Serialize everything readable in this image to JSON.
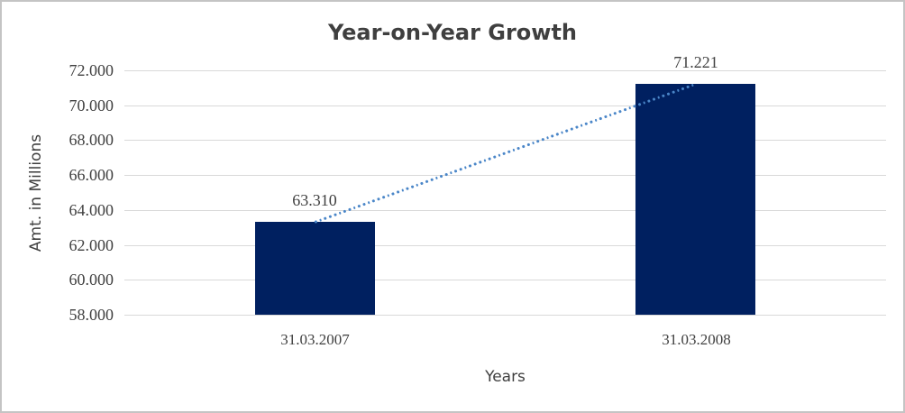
{
  "chart_data": {
    "type": "bar",
    "title": "Year-on-Year Growth",
    "xlabel": "Years",
    "ylabel": "Amt. in Millions",
    "categories": [
      "31.03.2007",
      "31.03.2008"
    ],
    "values": [
      63310,
      71221
    ],
    "data_labels": [
      "63.310",
      "71.221"
    ],
    "ylim": [
      58000,
      72000
    ],
    "y_tick_step": 2000,
    "y_tick_labels": [
      "58.000",
      "60.000",
      "62.000",
      "64.000",
      "66.000",
      "68.000",
      "70.000",
      "72.000"
    ],
    "grid": true,
    "legend": "none",
    "trendline": {
      "type": "linear",
      "style": "dotted",
      "connects": [
        "31.03.2007",
        "31.03.2008"
      ]
    },
    "colors": {
      "bar": "#002060",
      "trendline": "#4a86c8",
      "gridline": "#d9d9d9",
      "axis_line": "#d9d9d9",
      "title_text": "#3f3f3f",
      "tick_text": "#404040",
      "background": "#ffffff",
      "frame_border": "#c4c4c4"
    }
  }
}
